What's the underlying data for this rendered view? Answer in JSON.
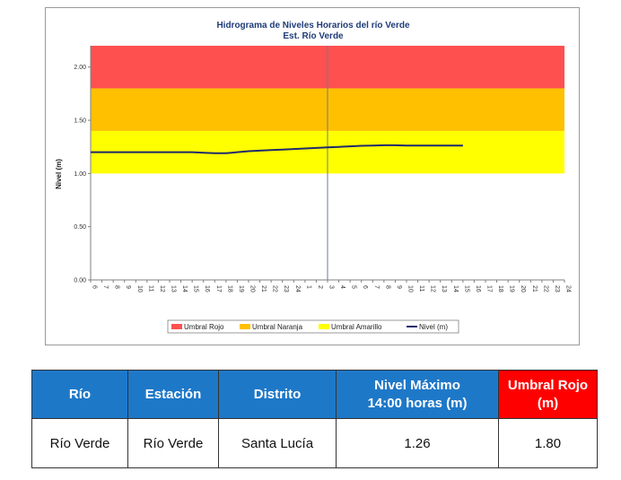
{
  "chart_data": {
    "type": "line",
    "title": "Hidrograma de Niveles Horarios del río Verde",
    "subtitle": "Est. Río Verde",
    "ylabel": "Nivel (m)",
    "xlabel": "",
    "ylim": [
      0,
      2.2
    ],
    "yticks": [
      "0.00",
      "0.50",
      "1.00",
      "1.50",
      "2.00"
    ],
    "x_tick_labels": [
      "6",
      "7",
      "8",
      "9",
      "10",
      "11",
      "12",
      "13",
      "14",
      "15",
      "16",
      "17",
      "18",
      "19",
      "20",
      "21",
      "22",
      "23",
      "24",
      "1",
      "2",
      "3",
      "4",
      "5",
      "6",
      "7",
      "8",
      "9",
      "10",
      "11",
      "12",
      "13",
      "14",
      "15",
      "16",
      "17",
      "18",
      "19",
      "20",
      "21",
      "22",
      "23",
      "24"
    ],
    "threshold_bands": [
      {
        "name": "Umbral Amarillo",
        "from": 1.0,
        "to": 1.4,
        "color": "#ffff00"
      },
      {
        "name": "Umbral Naranja",
        "from": 1.4,
        "to": 1.8,
        "color": "#ffc000"
      },
      {
        "name": "Umbral Rojo",
        "from": 1.8,
        "to": 2.2,
        "color": "#ff5050"
      }
    ],
    "series": [
      {
        "name": "Nivel (m)",
        "color": "#1f2a6e",
        "values": [
          1.2,
          1.2,
          1.2,
          1.2,
          1.2,
          1.2,
          1.2,
          1.2,
          1.2,
          1.2,
          1.195,
          1.19,
          1.19,
          1.2,
          1.21,
          1.215,
          1.22,
          1.225,
          1.23,
          1.235,
          1.24,
          1.245,
          1.25,
          1.255,
          1.26,
          1.263,
          1.265,
          1.265,
          1.263,
          1.262,
          1.262,
          1.262,
          1.262,
          1.262
        ]
      }
    ],
    "legend": {
      "placement": "bottom",
      "entries": [
        {
          "label": "Umbral Rojo",
          "color": "#ff5050",
          "kind": "patch"
        },
        {
          "label": "Umbral Naranja",
          "color": "#ffc000",
          "kind": "patch"
        },
        {
          "label": "Umbral Amarillo",
          "color": "#ffff00",
          "kind": "patch"
        },
        {
          "label": "Nivel (m)",
          "color": "#1f2a6e",
          "kind": "line"
        }
      ]
    },
    "vertical_marker_index": 21,
    "grid": false
  },
  "table": {
    "headers": {
      "rio": "Río",
      "estacion": "Estación",
      "distrito": "Distrito",
      "nivel_line1": "Nivel Máximo",
      "nivel_line2": "14:00 horas (m)",
      "umbral_line1": "Umbral Rojo",
      "umbral_line2": "(m)"
    },
    "row": {
      "rio": "Río Verde",
      "estacion": "Río Verde",
      "distrito": "Santa Lucía",
      "nivel": "1.26",
      "umbral": "1.80"
    },
    "header_color": "#1e78c8",
    "header_alert_color": "#ff0000"
  }
}
